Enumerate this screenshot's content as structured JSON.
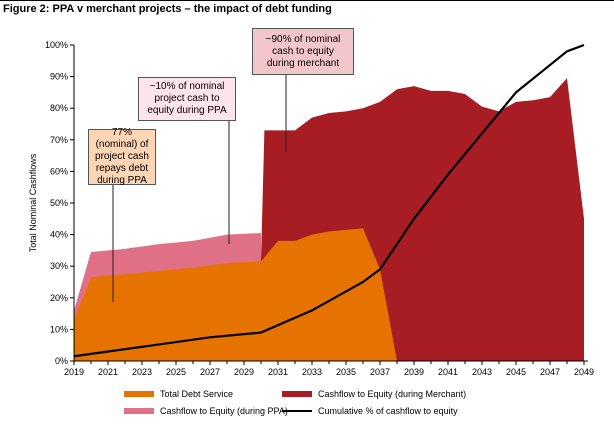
{
  "figure_title": "Figure 2: PPA v merchant projects – the impact of debt funding",
  "callouts": [
    "77% (nominal) of project cash repays debt during PPA",
    "~10% of nominal project cash to equity during PPA",
    "~90% of nominal cash to equity during merchant"
  ],
  "colors": {
    "debt": "#e67300",
    "equity_ppa": "#e07085",
    "equity_merchant": "#a71d23",
    "cumulative": "#000000"
  },
  "chart_data": {
    "type": "area",
    "title": "",
    "xlabel": "",
    "ylabel": "Total Nominal Cashflows",
    "xlim": [
      2019,
      2049
    ],
    "ylim": [
      0,
      100
    ],
    "y_unit": "%",
    "x_ticks": [
      2019,
      2021,
      2023,
      2025,
      2027,
      2029,
      2031,
      2033,
      2035,
      2037,
      2039,
      2041,
      2043,
      2045,
      2047,
      2049
    ],
    "y_ticks": [
      0,
      10,
      20,
      30,
      40,
      50,
      60,
      70,
      80,
      90,
      100
    ],
    "series": [
      {
        "name": "Total Debt Service",
        "kind": "area",
        "points": [
          [
            2019,
            13
          ],
          [
            2020,
            26.5
          ],
          [
            2023,
            28
          ],
          [
            2026,
            29.5
          ],
          [
            2028,
            31
          ],
          [
            2030,
            31.5
          ],
          [
            2031,
            38
          ],
          [
            2032,
            38
          ],
          [
            2033,
            40
          ],
          [
            2034,
            41
          ],
          [
            2035,
            41.5
          ],
          [
            2036,
            42
          ],
          [
            2037,
            29
          ],
          [
            2038,
            0
          ]
        ]
      },
      {
        "name": "Cashflow to Equity (during PPA)",
        "kind": "area",
        "points": [
          [
            2019,
            16
          ],
          [
            2020,
            34.5
          ],
          [
            2022,
            35.5
          ],
          [
            2024,
            37
          ],
          [
            2026,
            38
          ],
          [
            2028,
            40
          ],
          [
            2030,
            40.5
          ]
        ]
      },
      {
        "name": "Cashflow to Equity (during Merchant)",
        "kind": "area",
        "points": [
          [
            2030,
            32
          ],
          [
            2030.2,
            73
          ],
          [
            2031,
            73
          ],
          [
            2032,
            73
          ],
          [
            2033,
            77
          ],
          [
            2034,
            78.5
          ],
          [
            2035,
            79
          ],
          [
            2036,
            80
          ],
          [
            2037,
            82
          ],
          [
            2038,
            86
          ],
          [
            2039,
            87
          ],
          [
            2040,
            85.5
          ],
          [
            2041,
            85.5
          ],
          [
            2042,
            84.5
          ],
          [
            2043,
            80.5
          ],
          [
            2044,
            79
          ],
          [
            2045,
            82
          ],
          [
            2046,
            82.5
          ],
          [
            2047,
            83.5
          ],
          [
            2048,
            89.5
          ],
          [
            2049,
            45
          ]
        ]
      },
      {
        "name": "Cumulative % of cashflow to equity",
        "kind": "line",
        "points": [
          [
            2019,
            1.5
          ],
          [
            2023,
            4.5
          ],
          [
            2027,
            7.5
          ],
          [
            2030,
            9
          ],
          [
            2033,
            16
          ],
          [
            2036,
            25
          ],
          [
            2037,
            29
          ],
          [
            2039,
            45
          ],
          [
            2041,
            59
          ],
          [
            2043,
            72
          ],
          [
            2045,
            85
          ],
          [
            2048,
            98
          ],
          [
            2049,
            100
          ]
        ]
      }
    ],
    "legend": {
      "position": "bottom",
      "items": [
        {
          "label": "Total Debt Service",
          "kind": "area",
          "color": "#e67300"
        },
        {
          "label": "Cashflow to Equity (during Merchant)",
          "kind": "area",
          "color": "#a71d23"
        },
        {
          "label": "Cashflow to Equity (during PPA)",
          "kind": "area",
          "color": "#e07085"
        },
        {
          "label": "Cumulative % of cashflow to equity",
          "kind": "line",
          "color": "#000000"
        }
      ]
    },
    "grid": false
  }
}
